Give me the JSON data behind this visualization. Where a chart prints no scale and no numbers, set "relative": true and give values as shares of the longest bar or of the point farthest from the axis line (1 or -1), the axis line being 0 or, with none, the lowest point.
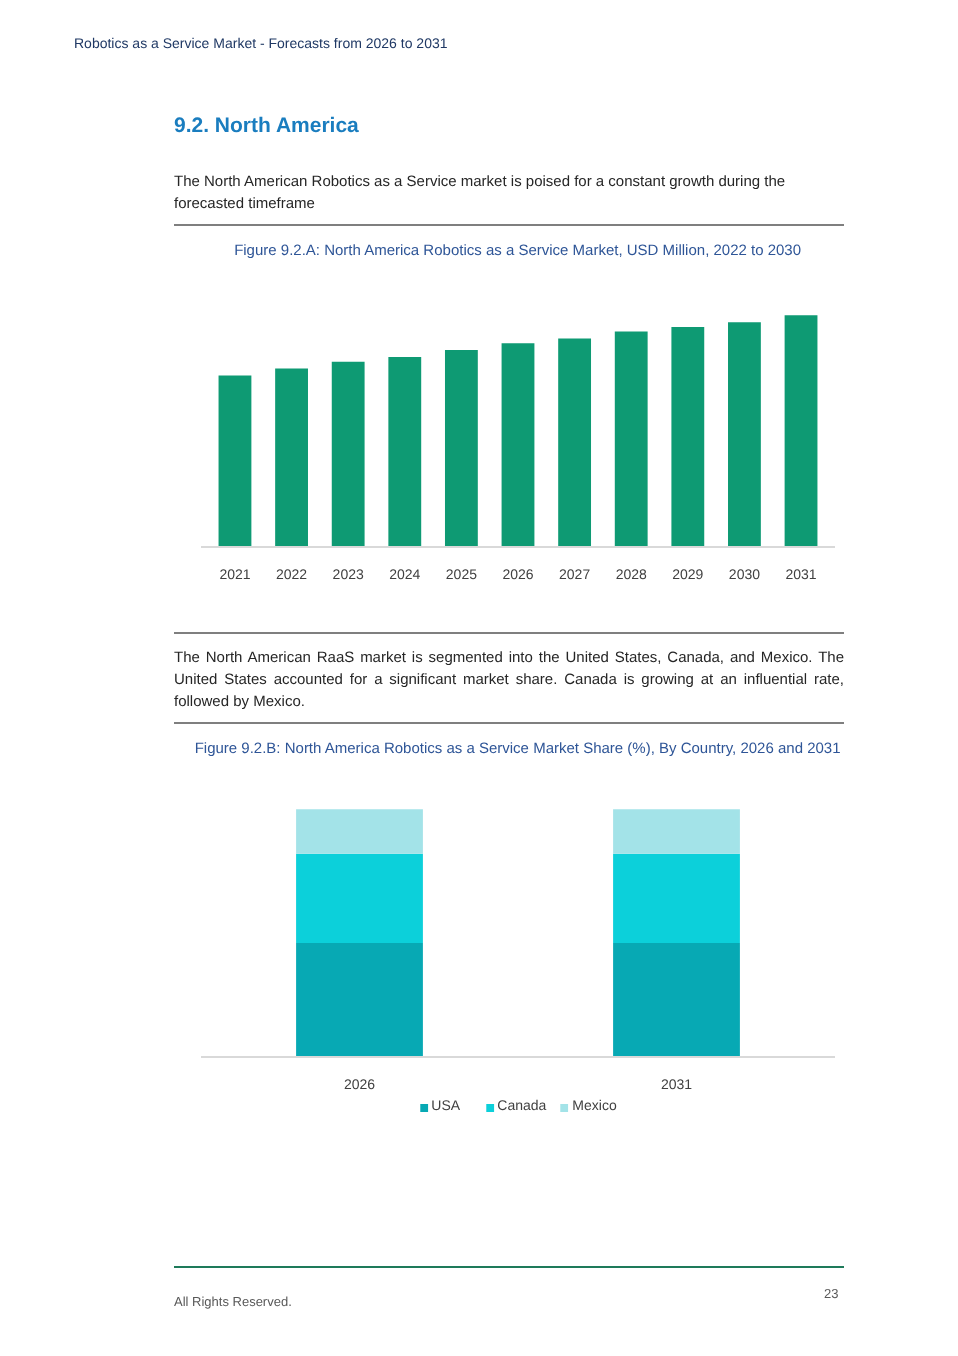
{
  "chart_data": [
    {
      "type": "bar",
      "title": "Figure 9.2.A: North America Robotics as a Service Market, USD Million, 2022 to 2030",
      "categories": [
        "2021",
        "2022",
        "2023",
        "2024",
        "2025",
        "2026",
        "2027",
        "2028",
        "2029",
        "2030",
        "2031"
      ],
      "values": [
        0.74,
        0.77,
        0.8,
        0.82,
        0.85,
        0.88,
        0.9,
        0.93,
        0.95,
        0.97,
        1
      ],
      "color": "#0e9a73",
      "relative": true,
      "annotations": [
        "Robotics as a Service Market - Forecasts from 2026 to 2031",
        "9.2. North America",
        "The North American Robotics as a Service market is poised for a constant growth during the forecasted timeframe"
      ]
    },
    {
      "type": "bar",
      "title": "Figure 9.2.B: North America Robotics as a Service Market Share (%), By Country, 2026 and 2031",
      "categories": [
        "2026",
        "2031"
      ],
      "stacked": true,
      "relative": true,
      "legend": "bottom",
      "series": [
        {
          "name": "USA",
          "color": "#07a9b4",
          "values": [
            0.46,
            0.46
          ]
        },
        {
          "name": "Canada",
          "color": "#0cd0da",
          "values": [
            0.36,
            0.36
          ]
        },
        {
          "name": "Mexico",
          "color": "#a3e3e8",
          "values": [
            0.18,
            0.18
          ]
        }
      ],
      "annotations": [
        "The North American RaaS market is segmented into the United States, Canada, and Mexico. The United States accounted for a significant market share. Canada is growing at an influential rate, followed by Mexico.",
        "All Rights Reserved.",
        "23"
      ]
    }
  ]
}
